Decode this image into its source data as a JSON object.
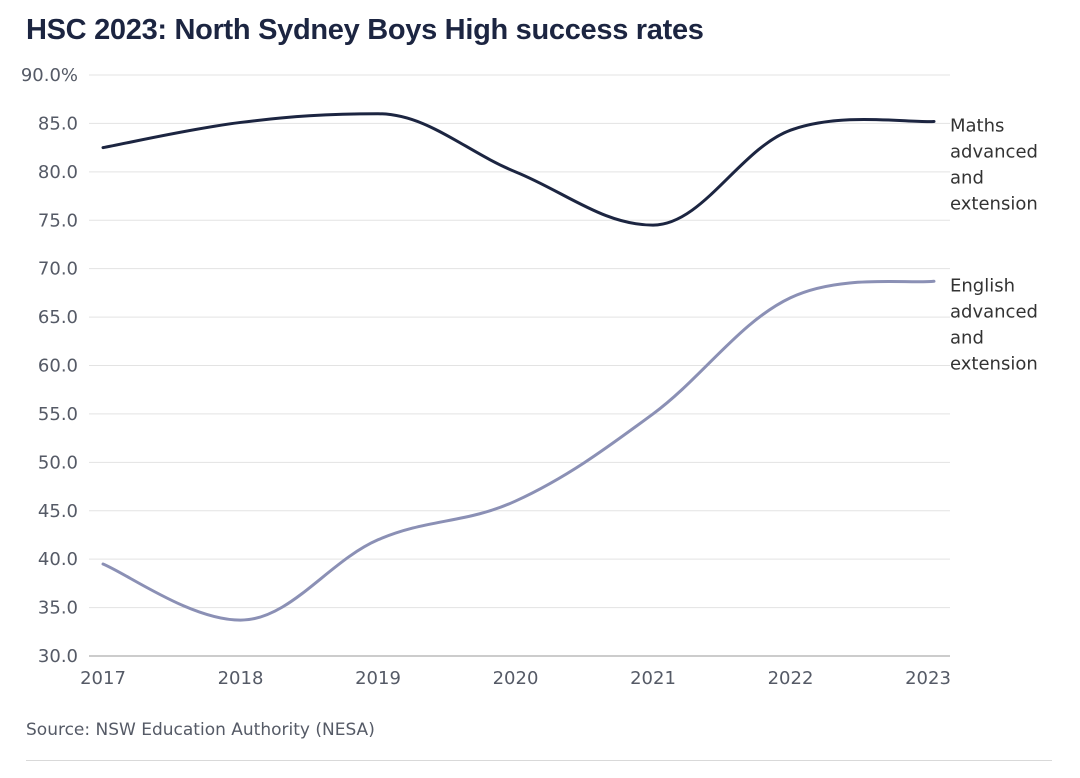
{
  "chart_data": {
    "type": "line",
    "title": "HSC 2023: North Sydney Boys High success rates",
    "x": [
      "2017",
      "2018",
      "2019",
      "2020",
      "2021",
      "2022",
      "2023"
    ],
    "series": [
      {
        "name": "Maths advanced and extension",
        "label_lines": [
          "Maths",
          "advanced",
          "and",
          "extension"
        ],
        "color": "#1c2541",
        "values": [
          82.5,
          85.1,
          86.0,
          80.0,
          74.5,
          84.3,
          85.2
        ]
      },
      {
        "name": "English advanced and extension",
        "label_lines": [
          "English",
          "advanced",
          "and",
          "extension"
        ],
        "color": "#8b90b5",
        "values": [
          39.5,
          33.7,
          42.0,
          46.0,
          55.0,
          67.0,
          68.7
        ]
      }
    ],
    "yticks": [
      "90.0%",
      "85.0",
      "80.0",
      "75.0",
      "70.0",
      "65.0",
      "60.0",
      "55.0",
      "50.0",
      "45.0",
      "40.0",
      "35.0",
      "30.0"
    ],
    "ylim": [
      30,
      90
    ],
    "xlabel": "",
    "ylabel": "",
    "grid": true,
    "legend": "direct labels at line ends (right)"
  },
  "source": "Source: NSW Education Authority (NESA)"
}
